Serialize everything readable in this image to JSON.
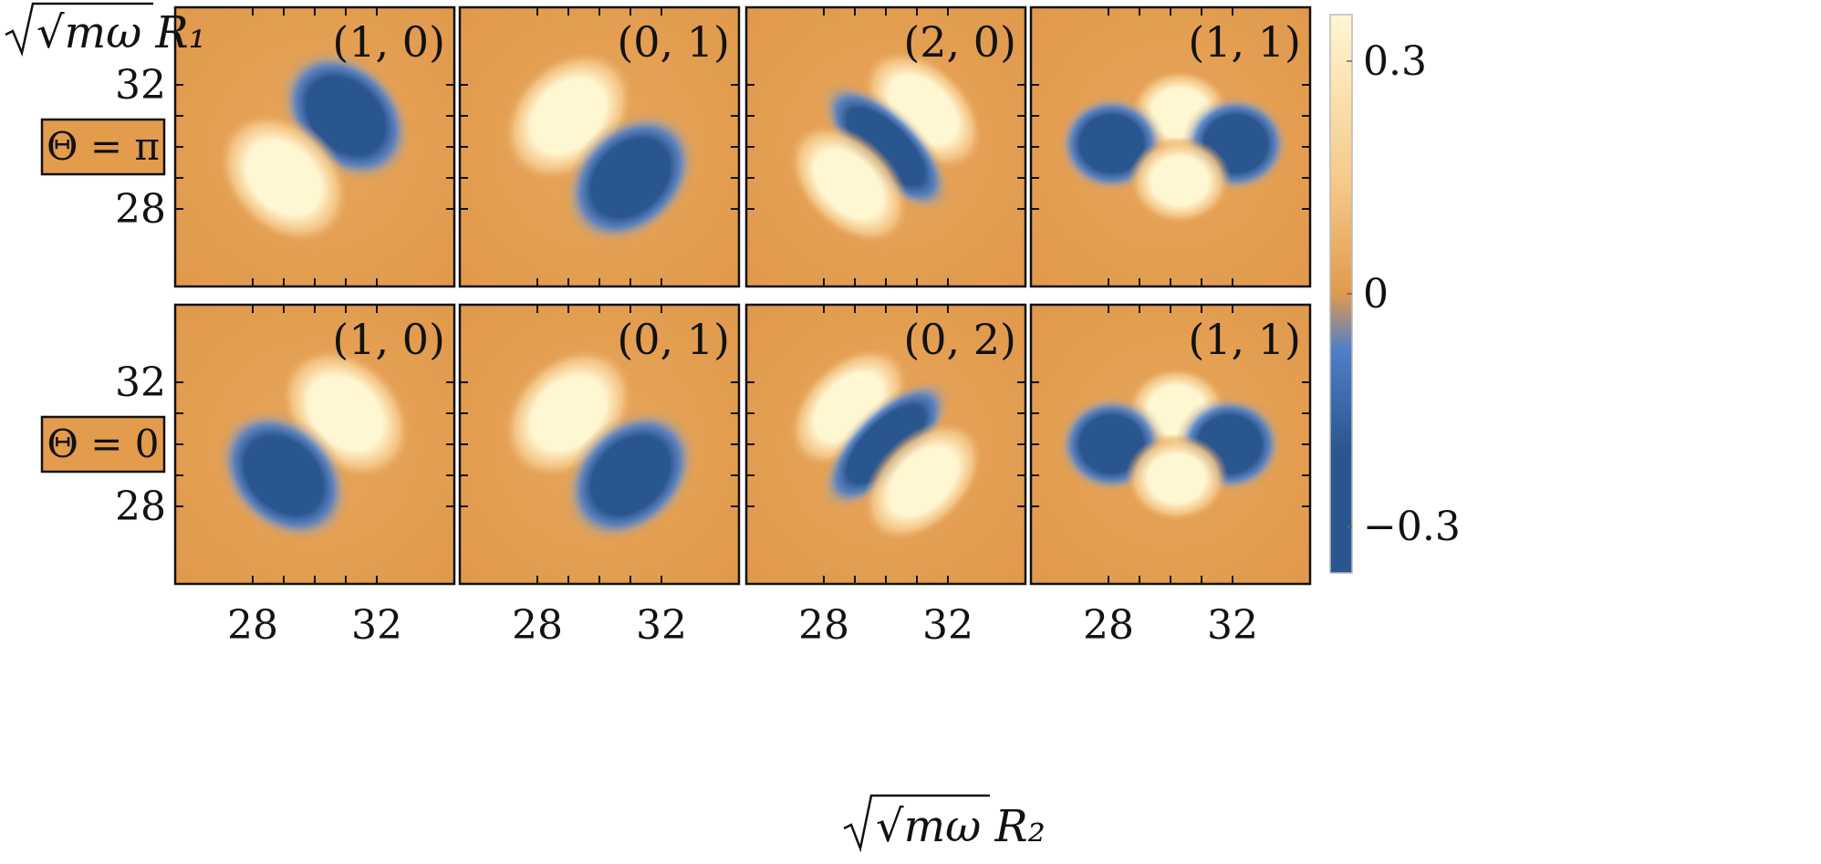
{
  "chart_data": {
    "type": "heatmap",
    "xlabel": "√mω R₂",
    "ylabel": "√mω R₁",
    "x_range": [
      25.5,
      34.5
    ],
    "y_range": [
      25.5,
      34.5
    ],
    "x_ticks": [
      28,
      29,
      30,
      31,
      32
    ],
    "x_tick_labels": [
      "28",
      "",
      "",
      "",
      "32"
    ],
    "y_ticks": [
      28,
      29,
      30,
      31,
      32
    ],
    "y_tick_labels": [
      "28",
      "",
      "",
      "",
      "32"
    ],
    "colorbar": {
      "range": [
        -0.36,
        0.36
      ],
      "ticks": [
        -0.3,
        0,
        0.3
      ],
      "tick_labels": [
        "−0.3",
        "0",
        "0.3"
      ],
      "colors": {
        "low": "#2a5690",
        "mid_low": "#4f7fc8",
        "zero": "#e09a4e",
        "mid_high": "#f6c98a",
        "high": "#fff6d2"
      }
    },
    "rows": [
      {
        "label": "Θ = π",
        "label_bg": "#e39b4c",
        "panels": [
          {
            "label": "(1, 0)",
            "lobes": [
              {
                "x": 31,
                "y": 31,
                "sign": -1
              },
              {
                "x": 29,
                "y": 29,
                "sign": 1
              }
            ]
          },
          {
            "label": "(0, 1)",
            "lobes": [
              {
                "x": 29,
                "y": 31,
                "sign": 1
              },
              {
                "x": 31,
                "y": 29,
                "sign": -1
              }
            ]
          },
          {
            "label": "(2, 0)",
            "lobes": [
              {
                "x": 31.2,
                "y": 31.2,
                "sign": 1
              },
              {
                "x": 30,
                "y": 30,
                "sign": -1
              },
              {
                "x": 28.8,
                "y": 28.8,
                "sign": 1
              }
            ]
          },
          {
            "label": "(1, 1)",
            "lobes": [
              {
                "x": 30.3,
                "y": 31.1,
                "sign": 1
              },
              {
                "x": 28.1,
                "y": 30.1,
                "sign": -1
              },
              {
                "x": 32.1,
                "y": 30.1,
                "sign": -1
              },
              {
                "x": 30.3,
                "y": 28.9,
                "sign": 1
              }
            ]
          }
        ]
      },
      {
        "label": "Θ = 0",
        "label_bg": "#e39b4c",
        "panels": [
          {
            "label": "(1, 0)",
            "lobes": [
              {
                "x": 31,
                "y": 31,
                "sign": 1
              },
              {
                "x": 29,
                "y": 29,
                "sign": -1
              }
            ]
          },
          {
            "label": "(0, 1)",
            "lobes": [
              {
                "x": 29,
                "y": 31,
                "sign": 1
              },
              {
                "x": 31,
                "y": 29,
                "sign": -1
              }
            ]
          },
          {
            "label": "(0, 2)",
            "lobes": [
              {
                "x": 28.8,
                "y": 31.2,
                "sign": 1
              },
              {
                "x": 30,
                "y": 30,
                "sign": -1
              },
              {
                "x": 31.2,
                "y": 28.8,
                "sign": 1
              }
            ]
          },
          {
            "label": "(1, 1)",
            "lobes": [
              {
                "x": 30.2,
                "y": 31.1,
                "sign": 1
              },
              {
                "x": 28.1,
                "y": 30,
                "sign": -1
              },
              {
                "x": 31.9,
                "y": 30,
                "sign": -1
              },
              {
                "x": 30.2,
                "y": 28.9,
                "sign": 1
              }
            ]
          }
        ]
      }
    ]
  }
}
